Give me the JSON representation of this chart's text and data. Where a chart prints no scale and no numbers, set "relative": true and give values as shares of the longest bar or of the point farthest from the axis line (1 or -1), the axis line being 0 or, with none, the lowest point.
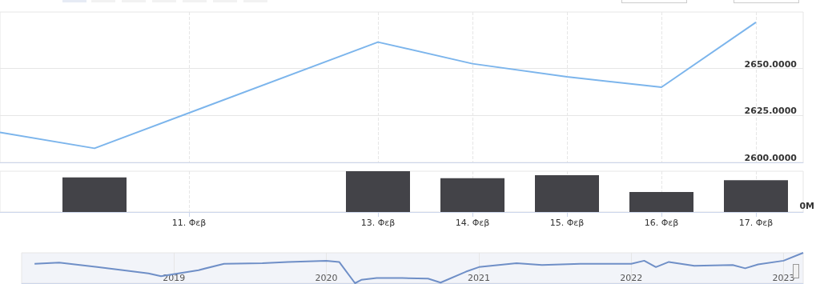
{
  "chart_data": [
    {
      "type": "line",
      "color": "#7cb5ec",
      "x": [
        "--02-09",
        "--02-10",
        "--02-13",
        "--02-14",
        "--02-15",
        "--02-16",
        "--02-17"
      ],
      "values": [
        2616,
        2607.5,
        2664,
        2652.5,
        2645.5,
        2640,
        2674.5
      ],
      "xlim": [
        "--02-09",
        "--02-17T12:00"
      ],
      "xticks": [
        {
          "value": "--02-11",
          "label": "11. Φεβ"
        },
        {
          "value": "--02-13",
          "label": "13. Φεβ"
        },
        {
          "value": "--02-14",
          "label": "14. Φεβ"
        },
        {
          "value": "--02-15",
          "label": "15. Φεβ"
        },
        {
          "value": "--02-16",
          "label": "16. Φεβ"
        },
        {
          "value": "--02-17",
          "label": "17. Φεβ"
        }
      ],
      "ylim": [
        2600,
        2680
      ],
      "yticks": [
        {
          "value": 2600,
          "label": "2600.0000"
        },
        {
          "value": 2625,
          "label": "2625.0000"
        },
        {
          "value": 2650,
          "label": "2650.0000"
        }
      ],
      "grid": true,
      "tick_labels": "y"
    },
    {
      "type": "bar",
      "color": "#434348",
      "relative": true,
      "x": [
        "--02-10",
        "--02-13",
        "--02-14",
        "--02-15",
        "--02-16",
        "--02-17"
      ],
      "values": [
        0.85,
        1,
        0.83,
        0.9,
        0.49,
        0.78
      ],
      "xlim": [
        "--02-09",
        "--02-17T12:00"
      ],
      "xticks": [
        {
          "value": "--02-11",
          "label": "11. Φεβ"
        },
        {
          "value": "--02-13",
          "label": "13. Φεβ"
        },
        {
          "value": "--02-14",
          "label": "14. Φεβ"
        },
        {
          "value": "--02-15",
          "label": "15. Φεβ"
        },
        {
          "value": "--02-16",
          "label": "16. Φεβ"
        },
        {
          "value": "--02-17",
          "label": "17. Φεβ"
        }
      ],
      "annotations": [
        "0M"
      ],
      "grid": "x",
      "tick_labels": "x"
    },
    {
      "type": "line",
      "color": "#6f8fc7",
      "relative": true,
      "x": [
        "2018-02",
        "2018-04",
        "2018-07",
        "2018-09",
        "2018-11",
        "2018-12",
        "2019-03",
        "2019-05",
        "2019-08",
        "2019-10",
        "2020-01",
        "2020-02",
        "2020-03-10",
        "2020-03-25",
        "2020-05",
        "2020-07",
        "2020-09",
        "2020-10",
        "2020-12",
        "2021-01",
        "2021-04",
        "2021-06",
        "2021-09",
        "2021-11",
        "2022-01",
        "2022-02",
        "2022-03",
        "2022-04",
        "2022-06",
        "2022-09",
        "2022-10",
        "2022-11",
        "2023-01",
        "2023-02-17"
      ],
      "values": [
        0.64,
        0.68,
        0.53,
        0.43,
        0.32,
        0.23,
        0.43,
        0.64,
        0.66,
        0.7,
        0.74,
        0.7,
        0,
        0.11,
        0.17,
        0.17,
        0.15,
        0.02,
        0.38,
        0.53,
        0.66,
        0.6,
        0.64,
        0.64,
        0.64,
        0.74,
        0.53,
        0.7,
        0.57,
        0.6,
        0.49,
        0.62,
        0.74,
        1
      ],
      "xlim": [
        "2018-01",
        "2023-02-17"
      ],
      "xticks": [
        {
          "value": "2019",
          "label": "2019"
        },
        {
          "value": "2020",
          "label": "2020"
        },
        {
          "value": "2021",
          "label": "2021"
        },
        {
          "value": "2022",
          "label": "2022"
        },
        {
          "value": "2023",
          "label": "2023"
        }
      ],
      "grid": "x",
      "tick_labels": "x"
    }
  ]
}
